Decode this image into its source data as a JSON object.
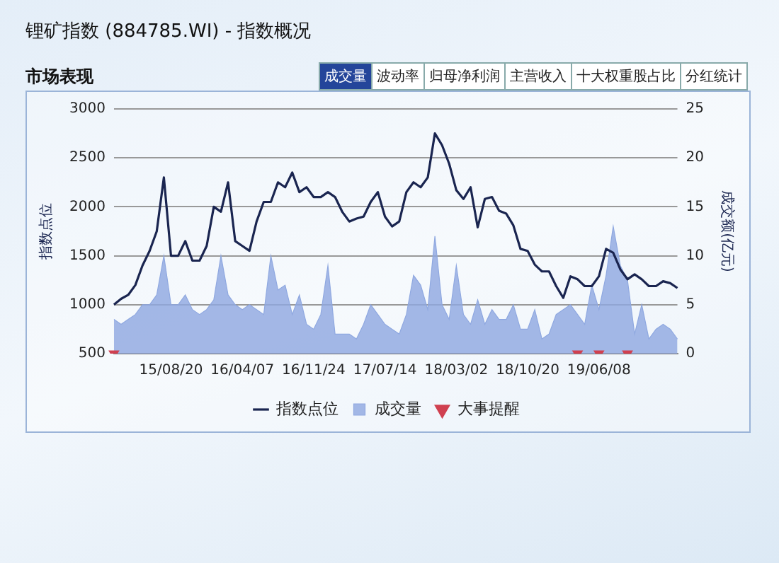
{
  "chart_data": {
    "type": "line",
    "title": "锂矿指数 (884785.WI) - 指数概况",
    "subtitle": "市场表现",
    "annotations": [
      "成交量",
      "波动率",
      "归母净利润",
      "主营收入",
      "十大权重股占比",
      "分红统计"
    ],
    "categories": [
      null,
      null,
      null,
      null,
      null,
      null,
      null,
      null,
      "15/08/20",
      null,
      null,
      null,
      null,
      null,
      null,
      null,
      null,
      null,
      "16/04/07",
      null,
      null,
      null,
      null,
      null,
      null,
      null,
      null,
      null,
      "16/11/24",
      null,
      null,
      null,
      null,
      null,
      null,
      null,
      null,
      null,
      "17/07/14",
      null,
      null,
      null,
      null,
      null,
      null,
      null,
      null,
      null,
      "18/03/02",
      null,
      null,
      null,
      null,
      null,
      null,
      null,
      null,
      null,
      "18/10/20",
      null,
      null,
      null,
      null,
      null,
      null,
      null,
      null,
      null,
      "19/06/08",
      null,
      null,
      null,
      null,
      null,
      null,
      null,
      null,
      null,
      null,
      null
    ],
    "ylabel": "指数点位",
    "y2label": "成交额(亿元)",
    "ylim": [
      500,
      3000
    ],
    "yticks": [
      500,
      1000,
      1500,
      2000,
      2500,
      3000
    ],
    "y2lim": [
      0,
      25
    ],
    "y2ticks": [
      0,
      5,
      10,
      15,
      20,
      25
    ],
    "grid": "y",
    "legend": "bottom",
    "series": [
      {
        "name": "指数点位",
        "type": "line",
        "color": "#1a2550",
        "values": [
          1000,
          1060,
          1100,
          1200,
          1400,
          1550,
          1750,
          2300,
          1500,
          1500,
          1650,
          1450,
          1450,
          1600,
          2000,
          1950,
          2250,
          1650,
          1600,
          1550,
          1850,
          2050,
          2050,
          2250,
          2200,
          2350,
          2150,
          2200,
          2100,
          2100,
          2150,
          2100,
          1950,
          1850,
          1880,
          1900,
          2050,
          2150,
          1900,
          1800,
          1850,
          2150,
          2250,
          2200,
          2300,
          2750,
          2630,
          2440,
          2170,
          2080,
          2200,
          1790,
          2080,
          2100,
          1960,
          1930,
          1810,
          1570,
          1550,
          1410,
          1340,
          1340,
          1190,
          1070,
          1290,
          1260,
          1190,
          1190,
          1290,
          1570,
          1530,
          1360,
          1260,
          1310,
          1260,
          1190,
          1190,
          1240,
          1220,
          1170
        ]
      },
      {
        "name": "成交量",
        "type": "area",
        "axis": "y2",
        "color": "#8fa8e0",
        "values": [
          3.5,
          3,
          3.5,
          4,
          5,
          5,
          6,
          10,
          5,
          5,
          6,
          4.5,
          4,
          4.5,
          5.5,
          10,
          6,
          5,
          4.5,
          5,
          4.5,
          4,
          10,
          6.5,
          7,
          4,
          6,
          3,
          2.5,
          4,
          9,
          2,
          2,
          2,
          1.5,
          3,
          5,
          4,
          3,
          2.5,
          2,
          4,
          8,
          7,
          4.5,
          12,
          5,
          3.5,
          9,
          4,
          3,
          5.5,
          3,
          4.5,
          3.5,
          3.5,
          5,
          2.5,
          2.5,
          4.5,
          1.5,
          2,
          4,
          4.5,
          5,
          4,
          3,
          7,
          4.5,
          8,
          13,
          9,
          7.5,
          2,
          5,
          1.5,
          2.5,
          3,
          2.5,
          1.5
        ]
      },
      {
        "name": "大事提醒",
        "type": "scatter",
        "marker": "triangle",
        "color": "#d04050",
        "values": [
          500,
          null,
          null,
          null,
          null,
          null,
          null,
          null,
          null,
          null,
          null,
          null,
          null,
          null,
          null,
          null,
          null,
          null,
          null,
          null,
          null,
          null,
          null,
          null,
          null,
          null,
          null,
          null,
          null,
          null,
          null,
          null,
          null,
          null,
          null,
          null,
          null,
          null,
          null,
          null,
          null,
          null,
          null,
          null,
          null,
          null,
          null,
          null,
          null,
          null,
          null,
          null,
          null,
          null,
          null,
          null,
          null,
          null,
          null,
          null,
          null,
          null,
          null,
          null,
          null,
          500,
          null,
          null,
          500,
          null,
          null,
          null,
          500,
          null,
          null,
          null,
          null,
          null,
          null,
          null
        ]
      }
    ]
  }
}
